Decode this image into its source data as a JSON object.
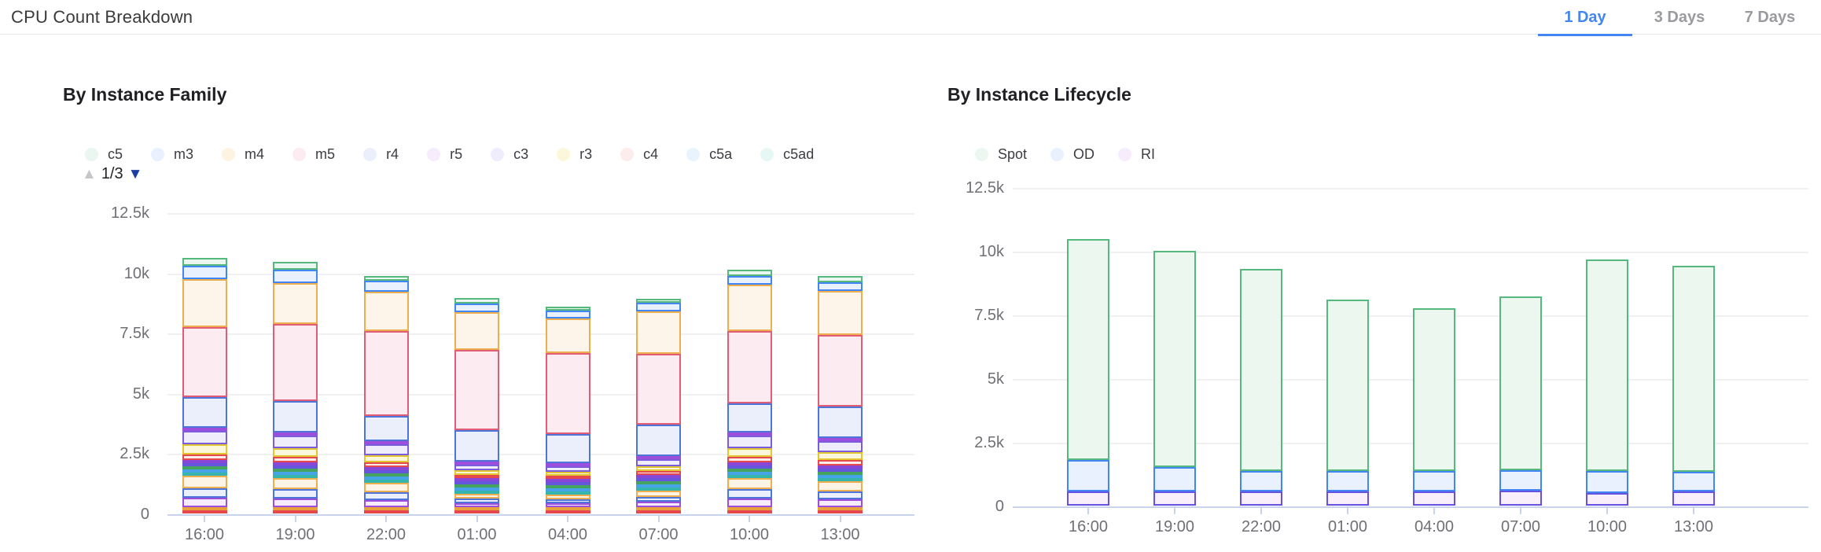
{
  "header": {
    "title": "CPU Count Breakdown",
    "tabs": [
      {
        "label": "1 Day",
        "active": true
      },
      {
        "label": "3 Days",
        "active": false
      },
      {
        "label": "7 Days",
        "active": false
      }
    ],
    "accent_color": "#4285f4"
  },
  "chart_data": [
    {
      "type": "bar",
      "stacked": true,
      "title": "By Instance Family",
      "legend_position": "top",
      "legend": [
        {
          "label": "c5",
          "color": "#eaf6ef"
        },
        {
          "label": "m3",
          "color": "#e9f0fe"
        },
        {
          "label": "m4",
          "color": "#fdf3e1"
        },
        {
          "label": "m5",
          "color": "#fcecf1"
        },
        {
          "label": "r4",
          "color": "#eaeffb"
        },
        {
          "label": "r5",
          "color": "#f6ecfc"
        },
        {
          "label": "c3",
          "color": "#efecfc"
        },
        {
          "label": "r3",
          "color": "#fbf7da"
        },
        {
          "label": "c4",
          "color": "#fdecec"
        },
        {
          "label": "c5a",
          "color": "#e9f3fc"
        },
        {
          "label": "c5ad",
          "color": "#e7f7f5"
        }
      ],
      "legend_pager": {
        "label": "1/3",
        "up_enabled": false,
        "down_enabled": true
      },
      "grid": true,
      "ylim": [
        0,
        12500
      ],
      "y_ticks": [
        {
          "value": 0,
          "label": "0"
        },
        {
          "value": 2500,
          "label": "2.5k"
        },
        {
          "value": 5000,
          "label": "5k"
        },
        {
          "value": 7500,
          "label": "7.5k"
        },
        {
          "value": 10000,
          "label": "10k"
        },
        {
          "value": 12500,
          "label": "12.5k"
        }
      ],
      "categories": [
        "16:00",
        "19:00",
        "22:00",
        "01:00",
        "04:00",
        "07:00",
        "10:00",
        "13:00"
      ],
      "series_order": "bottom-to-top",
      "series": [
        {
          "name": "",
          "stroke": "#e5484d",
          "fill": "#fdecec",
          "values": [
            100,
            95,
            80,
            45,
            40,
            55,
            95,
            85
          ]
        },
        {
          "name": "",
          "stroke": "#e9a23b",
          "fill": "#fdf3e1",
          "values": [
            60,
            56,
            47,
            26,
            25,
            32,
            56,
            50
          ]
        },
        {
          "name": "",
          "stroke": "#9d4edd",
          "fill": "#f6ecfc",
          "values": [
            400,
            370,
            310,
            175,
            165,
            215,
            370,
            335
          ]
        },
        {
          "name": "",
          "stroke": "#4c74d9",
          "fill": "#eaeffb",
          "values": [
            400,
            370,
            310,
            175,
            165,
            215,
            370,
            335
          ]
        },
        {
          "name": "",
          "stroke": "#ecae4e",
          "fill": "#fdf4e5",
          "values": [
            500,
            465,
            390,
            220,
            205,
            270,
            465,
            420
          ]
        },
        {
          "name": "c5ad",
          "stroke": "#35b5ab",
          "fill": "#e7f7f5",
          "values": [
            70,
            65,
            55,
            31,
            29,
            38,
            65,
            59
          ]
        },
        {
          "name": "c5a",
          "stroke": "#47a3e8",
          "fill": "#e9f3fc",
          "values": [
            70,
            65,
            55,
            31,
            29,
            38,
            65,
            59
          ]
        },
        {
          "name": "",
          "stroke": "#43a35f",
          "fill": "#e9f5ee",
          "values": [
            60,
            56,
            47,
            26,
            25,
            32,
            56,
            50
          ]
        },
        {
          "name": "",
          "stroke": "#6556dd",
          "fill": "#edebfb",
          "values": [
            80,
            74,
            62,
            35,
            33,
            43,
            74,
            67
          ]
        },
        {
          "name": "",
          "stroke": "#8947d8",
          "fill": "#f3ebfb",
          "values": [
            70,
            65,
            55,
            31,
            29,
            38,
            65,
            59
          ]
        },
        {
          "name": "c4",
          "stroke": "#e5484d",
          "fill": "#fdecec",
          "values": [
            250,
            233,
            195,
            110,
            103,
            135,
            233,
            210
          ]
        },
        {
          "name": "r3",
          "stroke": "#e3c531",
          "fill": "#fbf7da",
          "values": [
            400,
            370,
            310,
            175,
            165,
            215,
            370,
            335
          ]
        },
        {
          "name": "c3",
          "stroke": "#7a5ddd",
          "fill": "#efecfc",
          "values": [
            550,
            512,
            430,
            242,
            226,
            297,
            512,
            462
          ]
        },
        {
          "name": "r5",
          "stroke": "#9d4edd",
          "fill": "#f6ecfc",
          "values": [
            120,
            112,
            94,
            53,
            49,
            65,
            112,
            101
          ]
        },
        {
          "name": "r4",
          "stroke": "#4c74d9",
          "fill": "#eaeffb",
          "values": [
            1300,
            1300,
            1050,
            1300,
            1200,
            1300,
            1200,
            1300
          ]
        },
        {
          "name": "m5",
          "stroke": "#e25c76",
          "fill": "#fcecf1",
          "values": [
            2900,
            3200,
            3550,
            3320,
            3350,
            2950,
            3000,
            2960
          ]
        },
        {
          "name": "m4",
          "stroke": "#ecae4e",
          "fill": "#fdf5e9",
          "values": [
            2000,
            1700,
            1620,
            1570,
            1430,
            1750,
            1950,
            1850
          ]
        },
        {
          "name": "m3",
          "stroke": "#4285f4",
          "fill": "#e9f0fe",
          "values": [
            550,
            550,
            470,
            380,
            330,
            350,
            350,
            350
          ]
        },
        {
          "name": "c5",
          "stroke": "#55b87d",
          "fill": "#eaf6ef",
          "values": [
            320,
            340,
            170,
            200,
            180,
            170,
            270,
            270
          ]
        }
      ]
    },
    {
      "type": "bar",
      "stacked": true,
      "title": "By Instance Lifecycle",
      "legend_position": "top",
      "legend": [
        {
          "label": "Spot",
          "color": "#ecf7f0"
        },
        {
          "label": "OD",
          "color": "#e9f0fe"
        },
        {
          "label": "RI",
          "color": "#f6ecfc"
        }
      ],
      "grid": true,
      "ylim": [
        0,
        12500
      ],
      "y_ticks": [
        {
          "value": 0,
          "label": "0"
        },
        {
          "value": 2500,
          "label": "2.5k"
        },
        {
          "value": 5000,
          "label": "5k"
        },
        {
          "value": 7500,
          "label": "7.5k"
        },
        {
          "value": 10000,
          "label": "10k"
        },
        {
          "value": 12500,
          "label": "12.5k"
        }
      ],
      "categories": [
        "16:00",
        "19:00",
        "22:00",
        "01:00",
        "04:00",
        "07:00",
        "10:00",
        "13:00"
      ],
      "series_order": "bottom-to-top",
      "series": [
        {
          "name": "RI",
          "stroke": "#6552e0",
          "fill": "#f8effb",
          "values": [
            550,
            550,
            550,
            550,
            550,
            600,
            500,
            550
          ]
        },
        {
          "name": "OD",
          "stroke": "#4285f4",
          "fill": "#e9f0fe",
          "values": [
            1250,
            950,
            800,
            800,
            800,
            780,
            850,
            780
          ]
        },
        {
          "name": "Spot",
          "stroke": "#55b87d",
          "fill": "#ecf7f0",
          "values": [
            8650,
            8500,
            7950,
            6750,
            6400,
            6820,
            8300,
            8070
          ]
        }
      ]
    }
  ]
}
